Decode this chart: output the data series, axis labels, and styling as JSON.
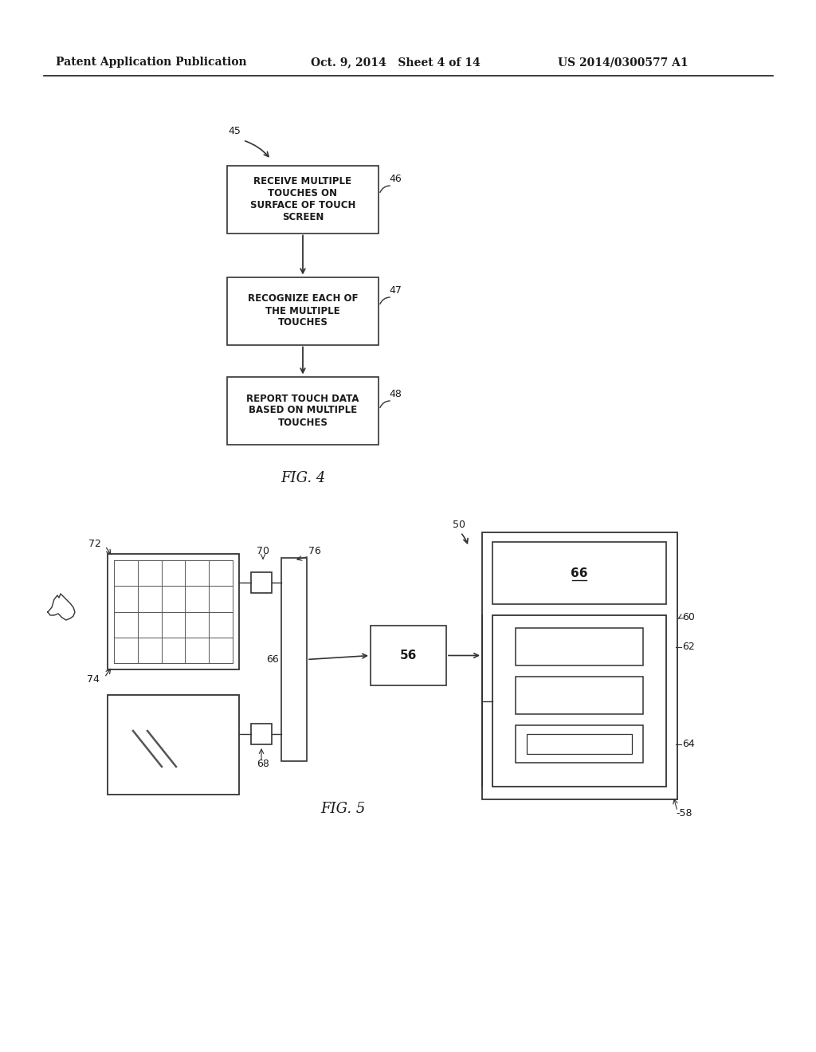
{
  "bg_color": "#ffffff",
  "header_left": "Patent Application Publication",
  "header_mid": "Oct. 9, 2014   Sheet 4 of 14",
  "header_right": "US 2014/0300577 A1",
  "fig4_label": "FIG. 4",
  "fig5_label": "FIG. 5",
  "box1_text": "RECEIVE MULTIPLE\nTOUCHES ON\nSURFACE OF TOUCH\nSCREEN",
  "box2_text": "RECOGNIZE EACH OF\nTHE MULTIPLE\nTOUCHES",
  "box3_text": "REPORT TOUCH DATA\nBASED ON MULTIPLE\nTOUCHES",
  "label_45": "45",
  "label_46": "46",
  "label_47": "47",
  "label_48": "48",
  "label_50": "50",
  "label_56": "56",
  "label_58": "-58",
  "label_60": "60",
  "label_62": "62",
  "label_64": "64",
  "label_66": "66",
  "label_68": "68",
  "label_70": "70",
  "label_72": "72",
  "label_74": "74",
  "label_76": "76",
  "label_66b": "66",
  "text_color": "#1a1a1a",
  "box_edge_color": "#333333",
  "line_color": "#333333"
}
